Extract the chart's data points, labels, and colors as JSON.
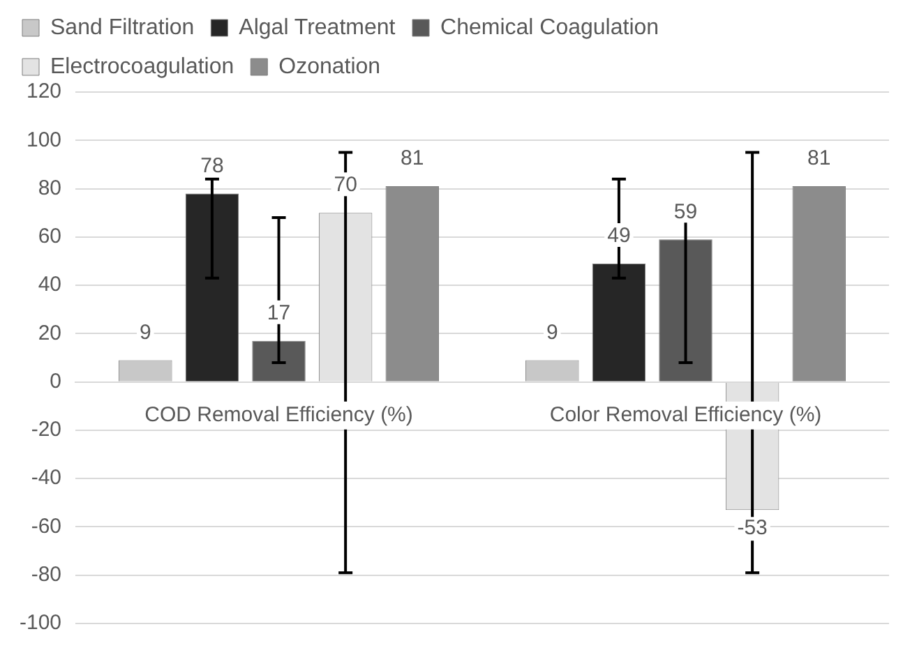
{
  "chart_data": {
    "type": "bar",
    "categories": [
      "COD Removal Efficiency (%)",
      "Color Removal Efficiency (%)"
    ],
    "series": [
      {
        "name": "Sand Filtration",
        "color": "#c8c8c8",
        "values": [
          9,
          9
        ]
      },
      {
        "name": "Algal Treatment",
        "color": "#262626",
        "values": [
          78,
          49
        ],
        "errors": [
          [
            43,
            84
          ],
          [
            43,
            84
          ]
        ]
      },
      {
        "name": "Chemical Coagulation",
        "color": "#595959",
        "values": [
          17,
          59
        ],
        "errors": [
          [
            8,
            68
          ],
          [
            8,
            68
          ]
        ]
      },
      {
        "name": "Electrocoagulation",
        "color": "#e3e3e3",
        "values": [
          70,
          -53
        ],
        "errors": [
          [
            -79,
            95
          ],
          [
            -79,
            95
          ]
        ]
      },
      {
        "name": "Ozonation",
        "color": "#8c8c8c",
        "values": [
          81,
          81
        ]
      }
    ],
    "ylim": [
      -100,
      120
    ],
    "yticks": [
      -100,
      -80,
      -60,
      -40,
      -20,
      0,
      20,
      40,
      60,
      80,
      100,
      120
    ],
    "grid": "y",
    "legend": "top",
    "data_labels": true
  }
}
